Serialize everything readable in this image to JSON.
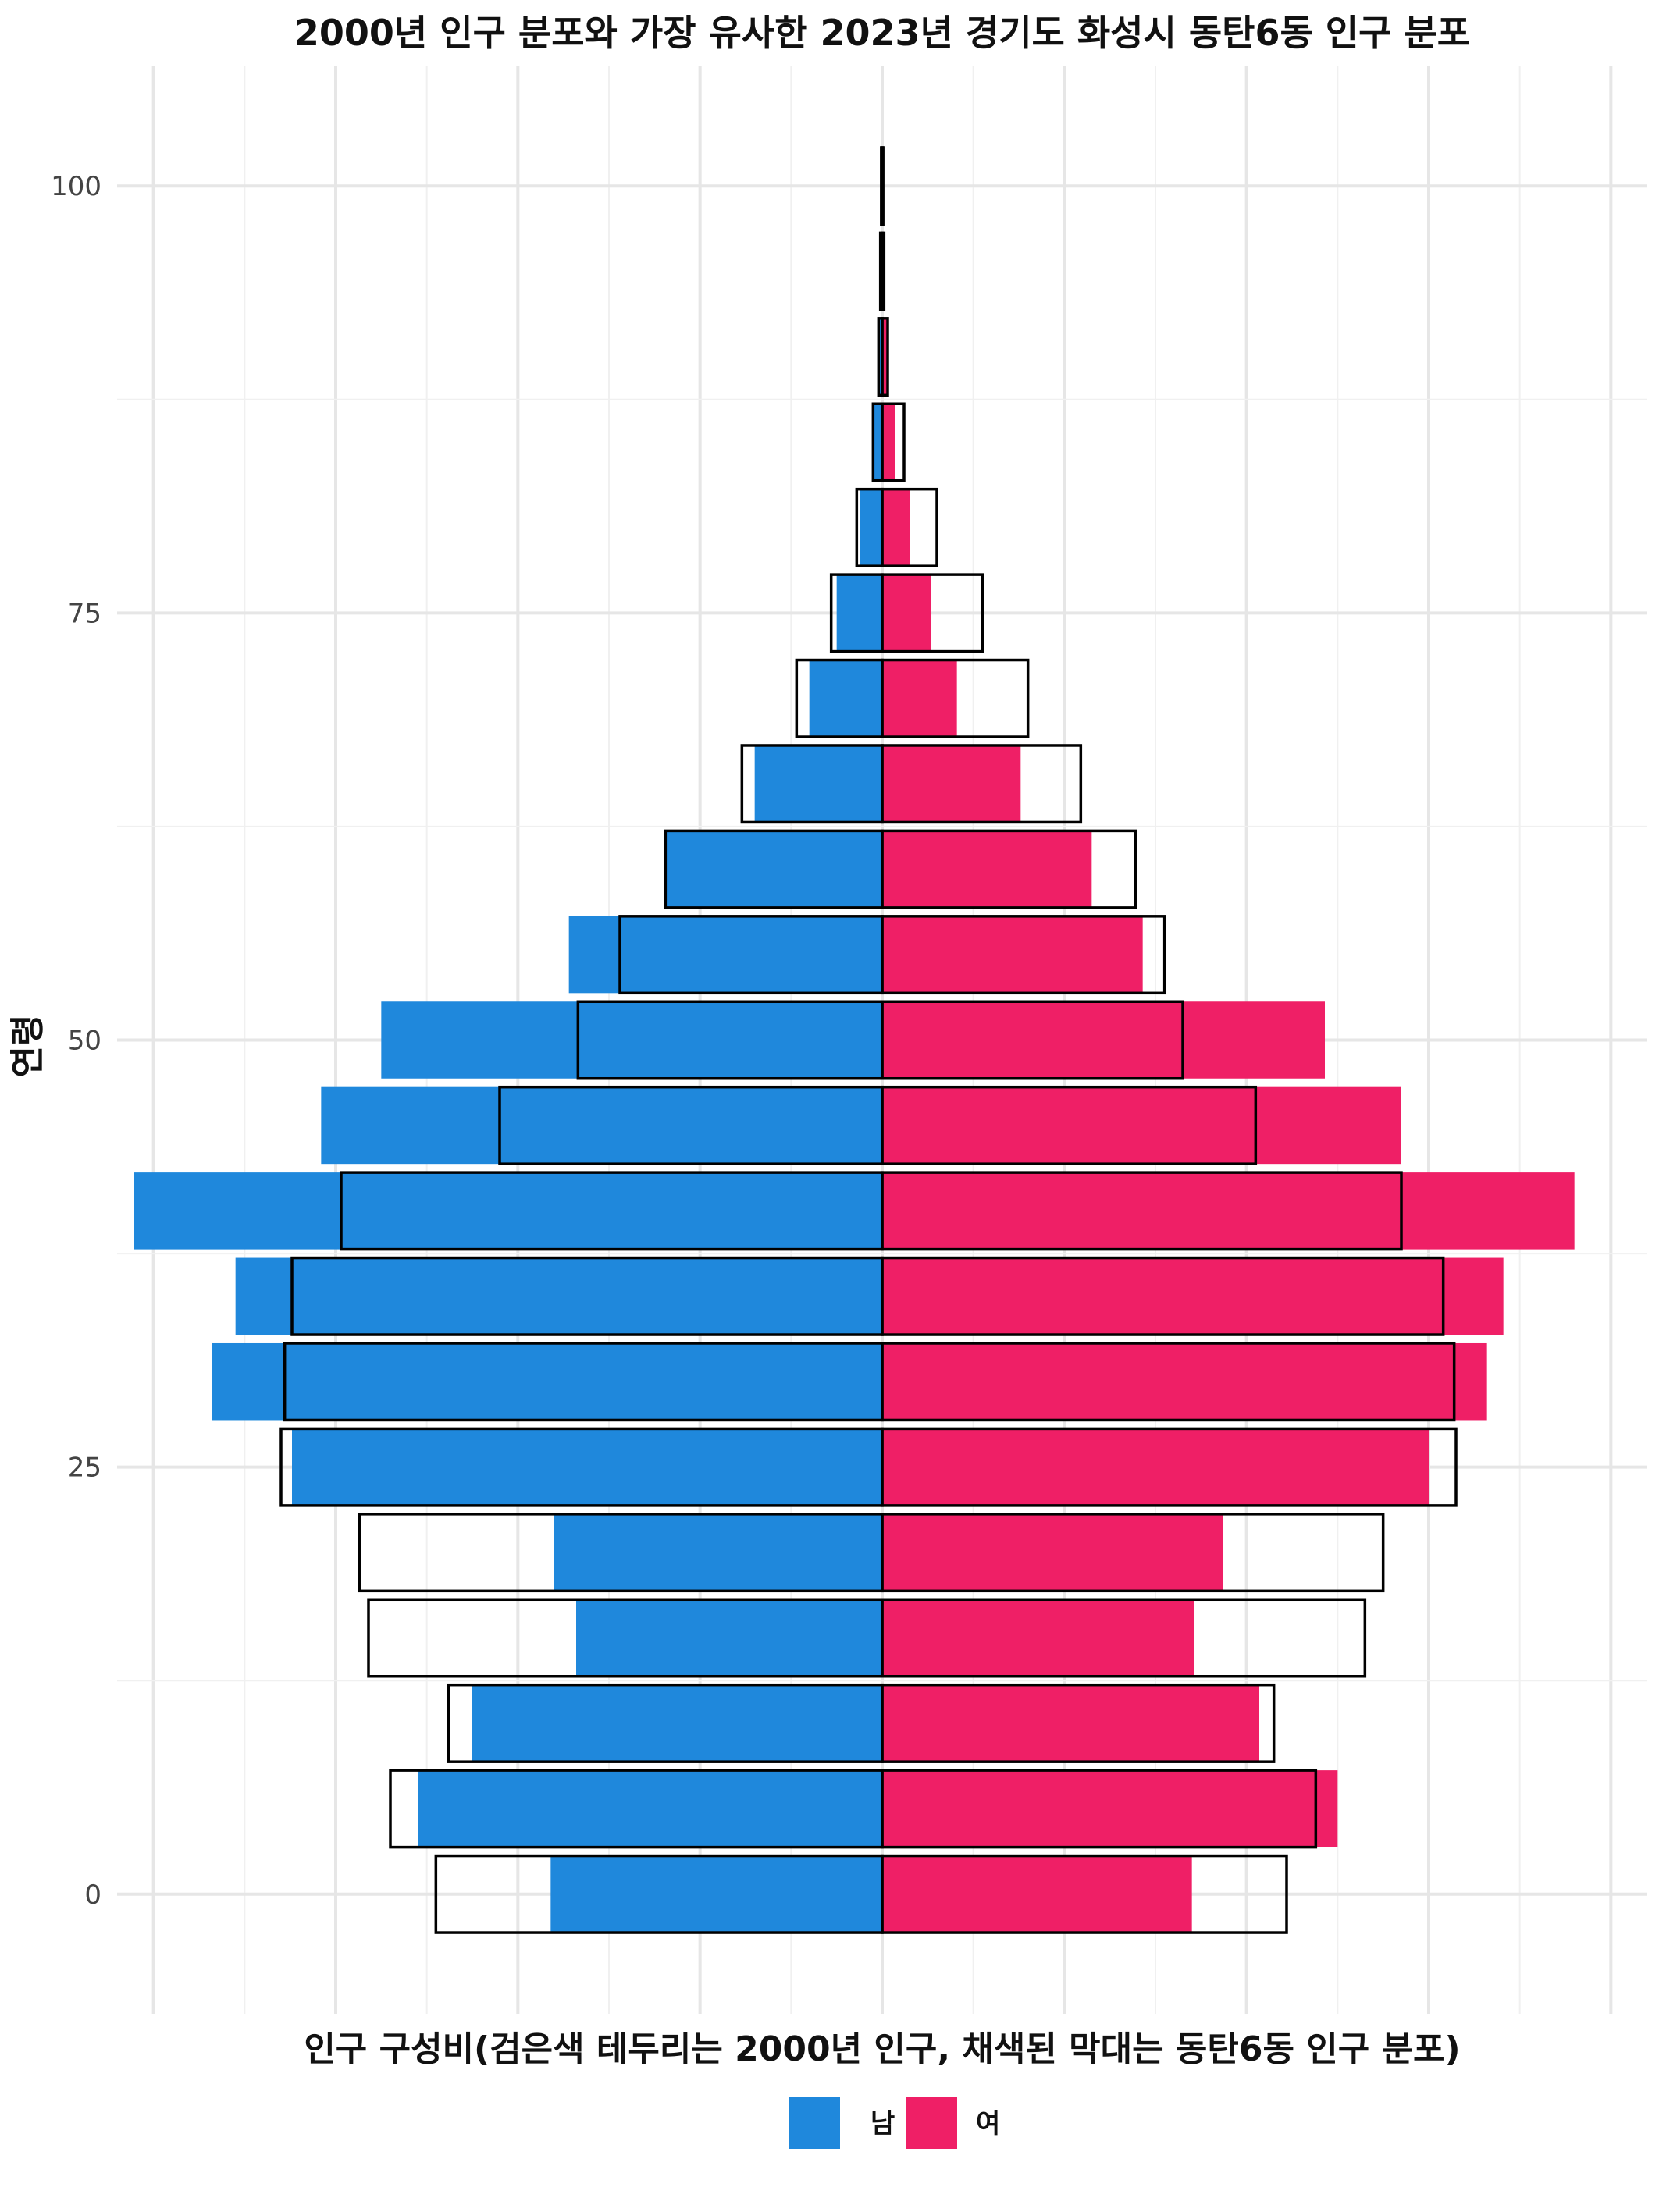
{
  "chart_data": {
    "type": "bar",
    "orientation": "horizontal-pyramid",
    "title": "2000년 인구 분포와 가장 유사한 2023년 경기도 화성시 동탄6동 인구 분포",
    "xlabel": "인구 구성비(검은색 테두리는 2000년 인구, 채색된 막대는 동탄6동 인구 분포)",
    "ylabel": "연령",
    "y_ticks": [
      "0",
      "25",
      "50",
      "75",
      "100"
    ],
    "y_tick_values": [
      0,
      25,
      50,
      75,
      100
    ],
    "ylim": [
      -7,
      107
    ],
    "xlim": [
      -4.2,
      4.2
    ],
    "grid": true,
    "legend_position": "bottom",
    "age_groups": [
      0,
      5,
      10,
      15,
      20,
      25,
      30,
      35,
      40,
      45,
      50,
      55,
      60,
      65,
      70,
      75,
      80,
      85,
      90,
      95,
      100
    ],
    "series": [
      {
        "name": "남",
        "color": "#1f88dc",
        "values": [
          -1.82,
          -2.55,
          -2.25,
          -1.68,
          -1.8,
          -3.24,
          -3.68,
          -3.55,
          -4.11,
          -3.08,
          -2.75,
          -1.72,
          -1.19,
          -0.7,
          -0.4,
          -0.25,
          -0.12,
          -0.05,
          -0.02,
          -0.01,
          -0.005
        ]
      },
      {
        "name": "여",
        "color": "#ef1f66",
        "values": [
          1.7,
          2.5,
          2.07,
          1.71,
          1.87,
          3.0,
          3.32,
          3.41,
          3.8,
          2.85,
          2.43,
          1.43,
          1.15,
          0.76,
          0.41,
          0.27,
          0.15,
          0.07,
          0.03,
          0.01,
          0.005
        ]
      }
    ],
    "outline_2000": {
      "name": "2000년 인구",
      "male": [
        -2.45,
        -2.7,
        -2.38,
        -2.82,
        -2.87,
        -3.3,
        -3.28,
        -3.24,
        -2.97,
        -2.1,
        -1.67,
        -1.44,
        -1.19,
        -0.77,
        -0.47,
        -0.28,
        -0.14,
        -0.05,
        -0.02,
        -0.01,
        -0.005
      ],
      "female": [
        2.22,
        2.38,
        2.15,
        2.65,
        2.75,
        3.15,
        3.14,
        3.08,
        2.85,
        2.05,
        1.65,
        1.55,
        1.39,
        1.09,
        0.8,
        0.55,
        0.3,
        0.12,
        0.03,
        0.01,
        0.005
      ]
    }
  }
}
